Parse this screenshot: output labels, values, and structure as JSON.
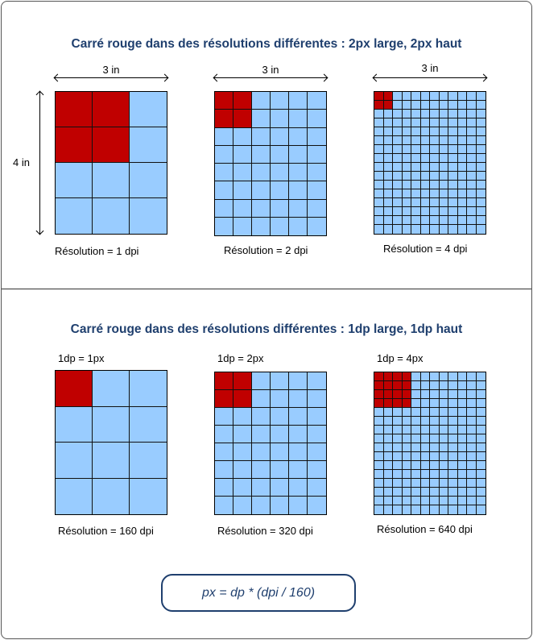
{
  "top": {
    "title": "Carré rouge dans des résolutions différentes : 2px large, 2px haut",
    "width_label": "3 in",
    "height_label": "4 in",
    "panels": [
      {
        "cols": 3,
        "rows": 4,
        "red": 2,
        "caption": "Résolution = 1 dpi"
      },
      {
        "cols": 6,
        "rows": 8,
        "red": 2,
        "caption": "Résolution = 2 dpi"
      },
      {
        "cols": 12,
        "rows": 16,
        "red": 2,
        "caption": "Résolution = 4 dpi"
      }
    ]
  },
  "bottom": {
    "title": "Carré rouge dans des résolutions différentes : 1dp large, 1dp haut",
    "panels": [
      {
        "cols": 3,
        "rows": 4,
        "red": 1,
        "ratio": "1dp = 1px",
        "caption": "Résolution = 160 dpi"
      },
      {
        "cols": 6,
        "rows": 8,
        "red": 2,
        "ratio": "1dp = 2px",
        "caption": "Résolution = 320 dpi"
      },
      {
        "cols": 12,
        "rows": 16,
        "red": 4,
        "ratio": "1dp = 4px",
        "caption": "Résolution = 640 dpi"
      }
    ]
  },
  "formula": "px = dp * (dpi / 160)",
  "colors": {
    "red": "#c00000",
    "blue": "#99ccff",
    "title": "#1f3f6e"
  }
}
